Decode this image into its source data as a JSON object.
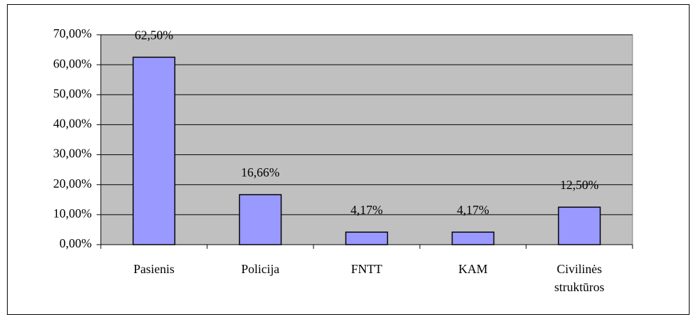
{
  "chart_data": {
    "type": "bar",
    "categories": [
      "Pasienis",
      "Policija",
      "FNTT",
      "KAM",
      "Civilinės struktūros"
    ],
    "values": [
      62.5,
      16.66,
      4.17,
      4.17,
      12.5
    ],
    "value_labels": [
      "62,50%",
      "16,66%",
      "4,17%",
      "4,17%",
      "12,50%"
    ],
    "color": "#9999ff",
    "ylim": [
      0,
      70
    ],
    "yticks": [
      {
        "value": 0,
        "label": "0,00%"
      },
      {
        "value": 10,
        "label": "10,00%"
      },
      {
        "value": 20,
        "label": "20,00%"
      },
      {
        "value": 30,
        "label": "30,00%"
      },
      {
        "value": 40,
        "label": "40,00%"
      },
      {
        "value": 50,
        "label": "50,00%"
      },
      {
        "value": 60,
        "label": "60,00%"
      },
      {
        "value": 70,
        "label": "70,00%"
      }
    ],
    "grid": true
  }
}
